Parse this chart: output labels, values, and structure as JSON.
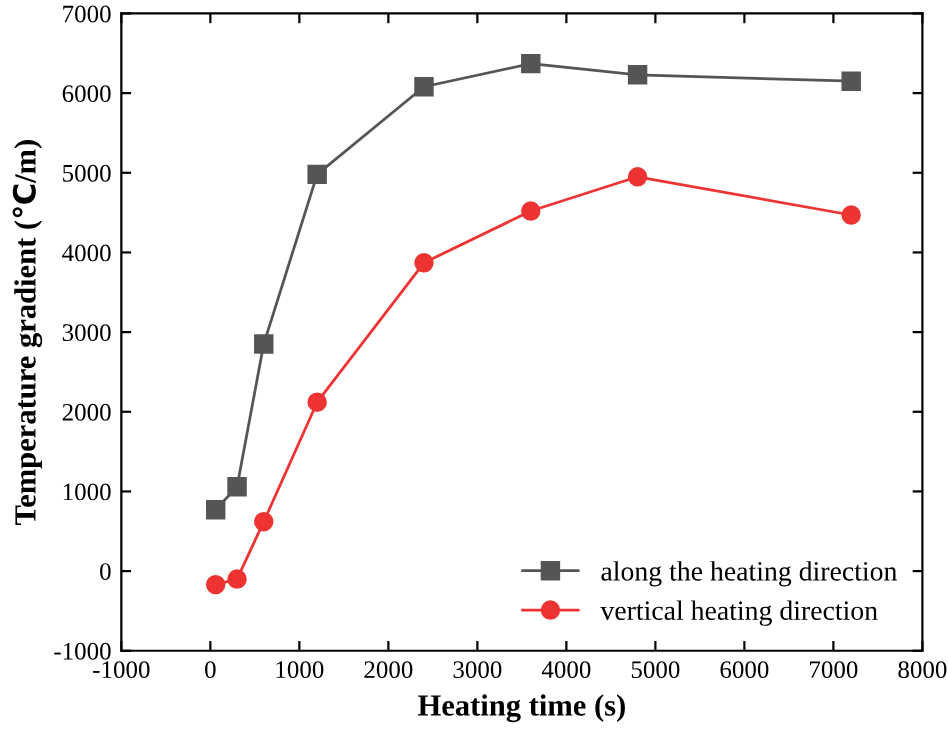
{
  "chart_data": {
    "type": "line",
    "xlabel": "Heating time (s)",
    "ylabel": "Temperature gradient (℃/m)",
    "xlim": [
      -1000,
      8000
    ],
    "xticks": [
      -1000,
      0,
      1000,
      2000,
      3000,
      4000,
      5000,
      6000,
      7000,
      8000
    ],
    "ylim": [
      -1000,
      7000
    ],
    "yticks": [
      -1000,
      0,
      1000,
      2000,
      3000,
      4000,
      5000,
      6000,
      7000
    ],
    "grid": false,
    "legend": "bottom right",
    "series": [
      {
        "name": "along the heating direction",
        "color": "#555555",
        "marker": "square",
        "x": [
          60,
          300,
          600,
          1200,
          2400,
          3600,
          4800,
          7200
        ],
        "values": [
          770,
          1060,
          2850,
          4980,
          6080,
          6370,
          6230,
          6150
        ]
      },
      {
        "name": "vertical heating direction",
        "color": "#ee3333",
        "marker": "circle",
        "x": [
          60,
          300,
          600,
          1200,
          2400,
          3600,
          4800,
          7200
        ],
        "values": [
          -170,
          -100,
          620,
          2120,
          3870,
          4520,
          4950,
          4470
        ]
      }
    ]
  }
}
